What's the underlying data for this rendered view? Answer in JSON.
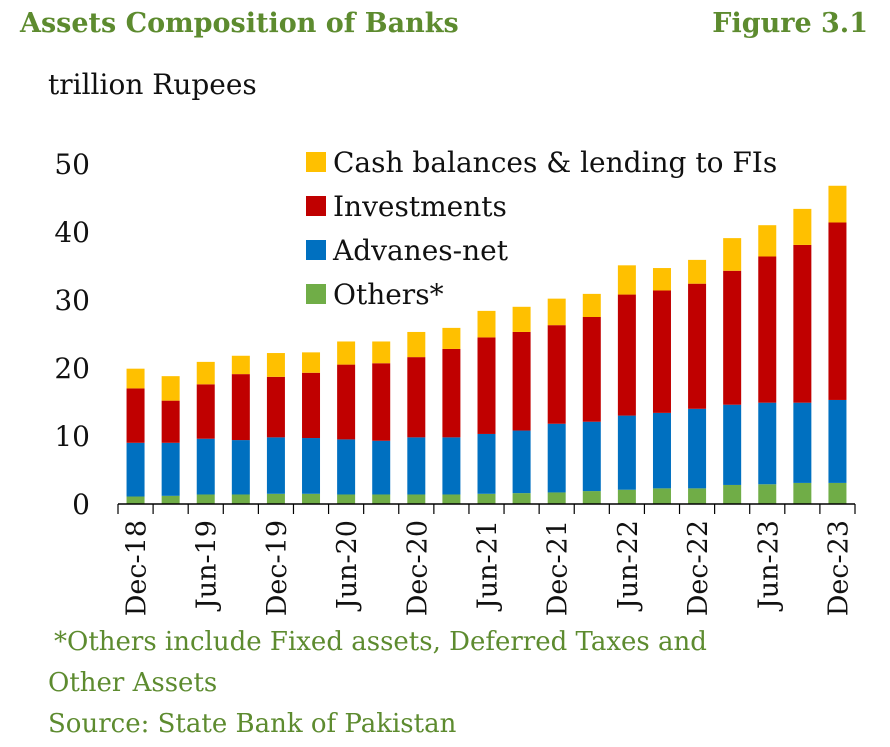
{
  "header": {
    "title": "Assets Composition of Banks",
    "figure": "Figure 3.1"
  },
  "unit_label": "trillion Rupees",
  "footnote": {
    "line1": "*Others include Fixed assets, Deferred Taxes and",
    "line2": "Other Assets",
    "source": "Source: State Bank of Pakistan"
  },
  "colors": {
    "cash": "#ffc000",
    "investments": "#c00000",
    "advances": "#0070c0",
    "others": "#70ad47",
    "title": "#5d8b2f"
  },
  "chart_data": {
    "type": "bar",
    "stacked": true,
    "ylim": [
      0,
      50
    ],
    "yticks": [
      0,
      10,
      20,
      30,
      40,
      50
    ],
    "categories": [
      "Dec-18",
      "Mar-19",
      "Jun-19",
      "Sep-19",
      "Dec-19",
      "Mar-20",
      "Jun-20",
      "Sep-20",
      "Dec-20",
      "Mar-21",
      "Jun-21",
      "Sep-21",
      "Dec-21",
      "Mar-22",
      "Jun-22",
      "Sep-22",
      "Dec-22",
      "Mar-23",
      "Jun-23",
      "Sep-23",
      "Dec-23"
    ],
    "tick_labels": [
      "Dec-18",
      "",
      "Jun-19",
      "",
      "Dec-19",
      "",
      "Jun-20",
      "",
      "Dec-20",
      "",
      "Jun-21",
      "",
      "Dec-21",
      "",
      "Jun-22",
      "",
      "Dec-22",
      "",
      "Jun-23",
      "",
      "Dec-23"
    ],
    "legend_position": "top",
    "series": [
      {
        "name": "Others*",
        "color": "#70ad47",
        "values": [
          1.1,
          1.2,
          1.4,
          1.4,
          1.5,
          1.5,
          1.4,
          1.4,
          1.4,
          1.4,
          1.5,
          1.6,
          1.7,
          1.9,
          2.1,
          2.3,
          2.3,
          2.8,
          2.9,
          3.1,
          3.1
        ]
      },
      {
        "name": "Advanes-net",
        "color": "#0070c0",
        "values": [
          7.9,
          7.8,
          8.2,
          8.0,
          8.3,
          8.2,
          8.1,
          7.9,
          8.4,
          8.4,
          8.8,
          9.2,
          10.1,
          10.2,
          10.9,
          11.1,
          11.7,
          11.8,
          12.0,
          11.8,
          12.2
        ]
      },
      {
        "name": "Investments",
        "color": "#c00000",
        "values": [
          8.0,
          6.2,
          8.0,
          9.7,
          8.9,
          9.6,
          11.0,
          11.4,
          11.8,
          13.0,
          14.2,
          14.5,
          14.5,
          15.4,
          17.8,
          18.0,
          18.4,
          19.7,
          21.5,
          23.2,
          26.1
        ]
      },
      {
        "name": "Cash balances & lending to FIs",
        "color": "#ffc000",
        "values": [
          2.9,
          3.6,
          3.3,
          2.7,
          3.5,
          3.0,
          3.4,
          3.2,
          3.7,
          3.1,
          3.9,
          3.7,
          3.9,
          3.4,
          4.3,
          3.3,
          3.5,
          4.8,
          4.6,
          5.3,
          5.4
        ]
      }
    ]
  }
}
